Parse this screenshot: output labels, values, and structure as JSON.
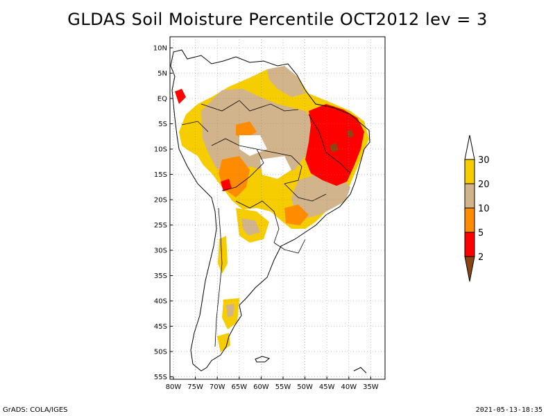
{
  "title": "GLDAS Soil Moisture Percentile OCT2012 lev = 3",
  "axes": {
    "lat_labels": [
      "10N",
      "5N",
      "EQ",
      "5S",
      "10S",
      "15S",
      "20S",
      "25S",
      "30S",
      "35S",
      "40S",
      "45S",
      "50S",
      "55S"
    ],
    "lon_labels": [
      "80W",
      "75W",
      "70W",
      "65W",
      "60W",
      "55W",
      "50W",
      "45W",
      "40W",
      "35W"
    ],
    "lat_range": [
      -56,
      11
    ],
    "lon_range": [
      -81,
      -33
    ],
    "grid": true
  },
  "legend": {
    "levels": [
      "30",
      "20",
      "10",
      "5",
      "2"
    ],
    "colors": {
      "above30": "#ffffff",
      "p20_30": "#f5cd00",
      "p10_20": "#d2b48c",
      "p5_10": "#ff8c00",
      "p2_5": "#ff0000",
      "below2": "#8b4513"
    }
  },
  "footer": {
    "left": "GrADS: COLA/IGES",
    "right": "2021-05-13-18:35"
  }
}
